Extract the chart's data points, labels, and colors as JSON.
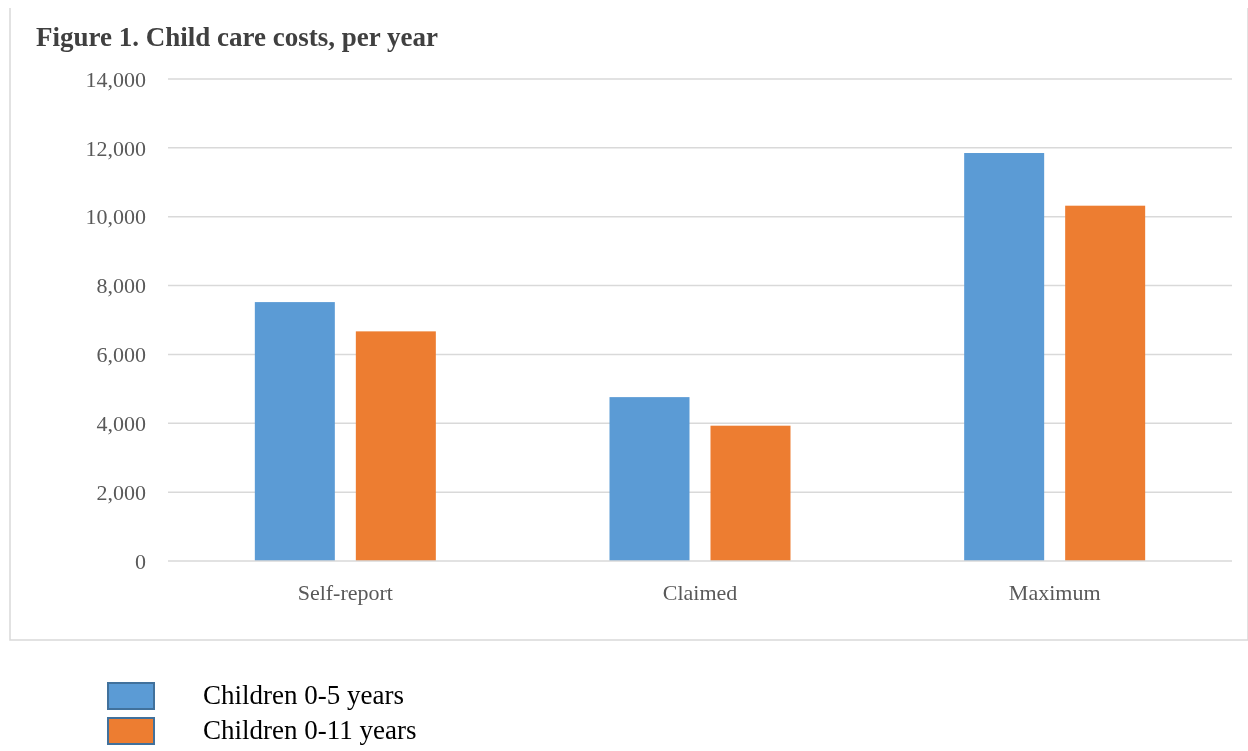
{
  "chart_data": {
    "type": "bar",
    "title": "Figure 1. Child care costs, per year",
    "categories": [
      "Self-report",
      "Claimed",
      "Maximum"
    ],
    "series": [
      {
        "name": "Children 0-5 years",
        "color": "#5b9bd5",
        "values": [
          7520,
          4760,
          11850
        ]
      },
      {
        "name": "Children 0-11 years",
        "color": "#ed7d31",
        "values": [
          6670,
          3930,
          10320
        ]
      }
    ],
    "ylim": [
      0,
      14000
    ],
    "yticks": [
      {
        "value": 0,
        "label": "0"
      },
      {
        "value": 2000,
        "label": "2,000"
      },
      {
        "value": 4000,
        "label": "4,000"
      },
      {
        "value": 6000,
        "label": "6,000"
      },
      {
        "value": 8000,
        "label": "8,000"
      },
      {
        "value": 10000,
        "label": "10,000"
      },
      {
        "value": 12000,
        "label": "12,000"
      },
      {
        "value": 14000,
        "label": "14,000"
      }
    ],
    "grid": "y",
    "legend": "bottom left"
  }
}
